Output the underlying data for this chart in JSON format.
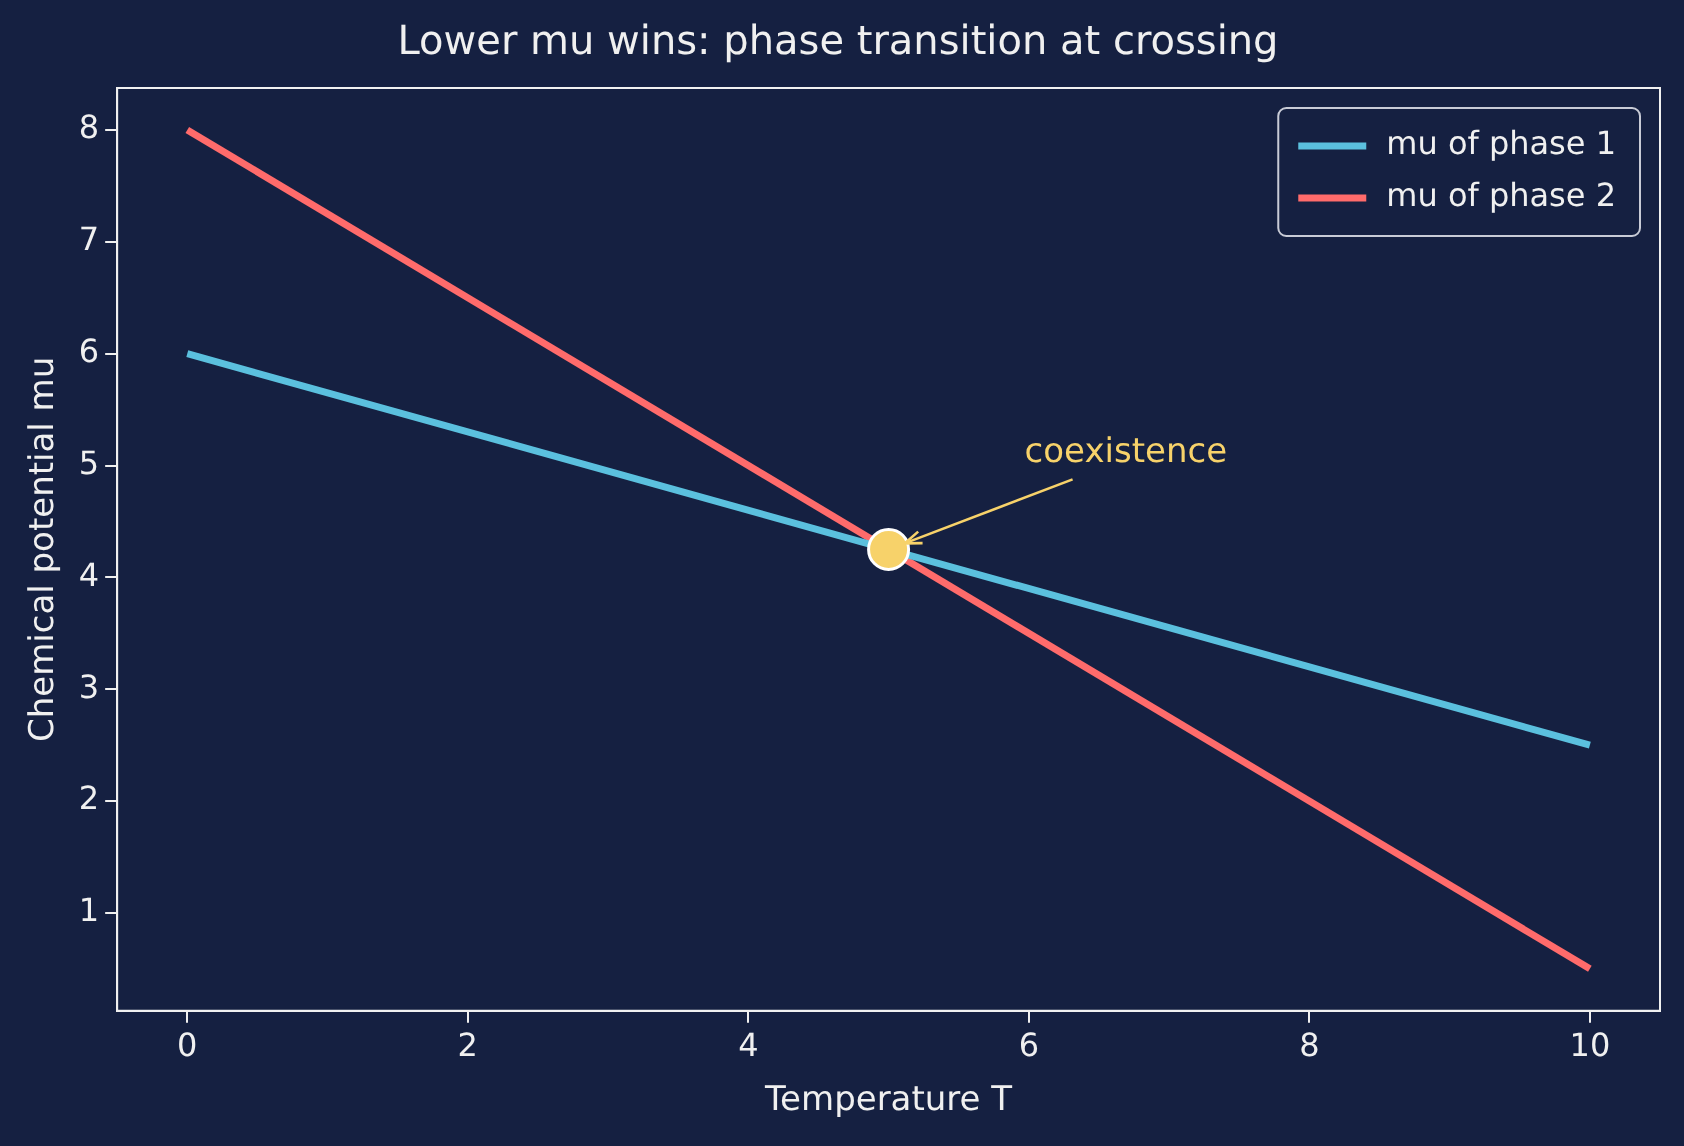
{
  "chart_data": {
    "type": "line",
    "title": "Lower mu wins: phase transition at crossing",
    "xlabel": "Temperature T",
    "ylabel": "Chemical potential mu",
    "series": [
      {
        "name": "mu of phase 1",
        "color": "#5bc0de",
        "x": [
          0,
          10
        ],
        "values": [
          6,
          2.5
        ]
      },
      {
        "name": "mu of phase 2",
        "color": "#ff6b6b",
        "x": [
          0,
          10
        ],
        "values": [
          8,
          0.5
        ]
      },
      {
        "type": "scatter",
        "color": "#f7d26a",
        "marker": "circle",
        "x": [
          5
        ],
        "values": [
          4.25
        ]
      }
    ],
    "xlim": [
      -0.5,
      10.5
    ],
    "xticks": [
      0,
      2,
      4,
      6,
      8,
      10
    ],
    "ylim": [
      0.125,
      8.375
    ],
    "yticks": [
      1,
      2,
      3,
      4,
      5,
      6,
      7,
      8
    ],
    "annotations": [
      {
        "text": "coexistence",
        "x": 5,
        "y": 4.25
      }
    ],
    "grid": false,
    "legend": "top right",
    "line_style": "solid"
  }
}
